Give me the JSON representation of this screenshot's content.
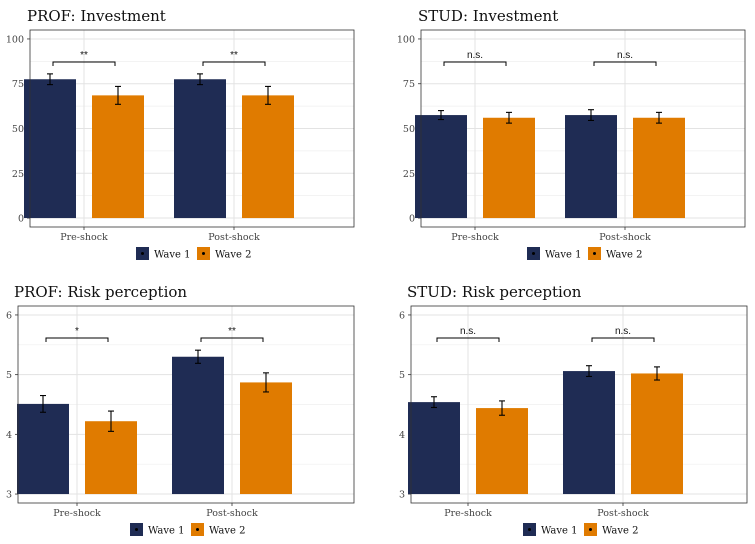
{
  "chart_data": [
    {
      "type": "bar",
      "title": "PROF: Investment",
      "categories": [
        "Pre-shock",
        "Post-shock"
      ],
      "series": [
        {
          "name": "Wave 1",
          "values": [
            77.5,
            77.5
          ],
          "err": [
            3,
            3
          ]
        },
        {
          "name": "Wave 2",
          "values": [
            68.5,
            68.5
          ],
          "err": [
            5,
            5
          ]
        }
      ],
      "significance": [
        "**",
        "**"
      ],
      "ylim": [
        0,
        100
      ],
      "yticks": [
        0,
        25,
        50,
        75,
        100
      ]
    },
    {
      "type": "bar",
      "title": "STUD: Investment",
      "categories": [
        "Pre-shock",
        "Post-shock"
      ],
      "series": [
        {
          "name": "Wave 1",
          "values": [
            57.5,
            57.5
          ],
          "err": [
            2.5,
            3
          ]
        },
        {
          "name": "Wave 2",
          "values": [
            56,
            56
          ],
          "err": [
            3,
            3
          ]
        }
      ],
      "significance": [
        "n.s.",
        "n.s."
      ],
      "ylim": [
        0,
        100
      ],
      "yticks": [
        0,
        25,
        50,
        75,
        100
      ]
    },
    {
      "type": "bar",
      "title": "PROF: Risk perception",
      "categories": [
        "Pre-shock",
        "Post-shock"
      ],
      "series": [
        {
          "name": "Wave 1",
          "values": [
            4.51,
            5.3
          ],
          "err": [
            0.14,
            0.11
          ]
        },
        {
          "name": "Wave 2",
          "values": [
            4.22,
            4.87
          ],
          "err": [
            0.17,
            0.16
          ]
        }
      ],
      "significance": [
        "*",
        "**"
      ],
      "ylim": [
        3,
        6
      ],
      "yticks": [
        3,
        4,
        5,
        6
      ]
    },
    {
      "type": "bar",
      "title": "STUD: Risk perception",
      "categories": [
        "Pre-shock",
        "Post-shock"
      ],
      "series": [
        {
          "name": "Wave 1",
          "values": [
            4.54,
            5.06
          ],
          "err": [
            0.09,
            0.09
          ]
        },
        {
          "name": "Wave 2",
          "values": [
            4.44,
            5.02
          ],
          "err": [
            0.12,
            0.11
          ]
        }
      ],
      "significance": [
        "n.s.",
        "n.s."
      ],
      "ylim": [
        3,
        6
      ],
      "yticks": [
        3,
        4,
        5,
        6
      ]
    }
  ],
  "legend": {
    "items": [
      "Wave 1",
      "Wave 2"
    ],
    "position": "bottom"
  },
  "colors": {
    "wave1": "#1f2c54",
    "wave2": "#e07b00"
  }
}
